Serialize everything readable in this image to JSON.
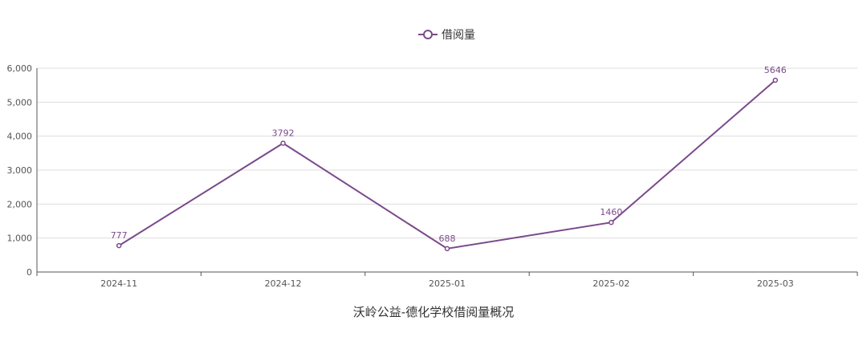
{
  "caption": "沃岭公益-德化学校借阅量概况",
  "chart_data": {
    "type": "line",
    "categories": [
      "2024-11",
      "2024-12",
      "2025-01",
      "2025-02",
      "2025-03"
    ],
    "series": [
      {
        "name": "借阅量",
        "values": [
          777,
          3792,
          688,
          1460,
          5646
        ],
        "color": "#7b4a8b"
      }
    ],
    "ylim": [
      0,
      6000
    ],
    "yticks": [
      0,
      1000,
      2000,
      3000,
      4000,
      5000,
      6000
    ],
    "ytick_labels": [
      "0",
      "1,000",
      "2,000",
      "3,000",
      "4,000",
      "5,000",
      "6,000"
    ],
    "grid": true,
    "legend_position": "top-center",
    "data_labels": [
      "777",
      "3792",
      "688",
      "1460",
      "5646"
    ],
    "axis_color": "#555555",
    "grid_color": "#dddddd"
  }
}
